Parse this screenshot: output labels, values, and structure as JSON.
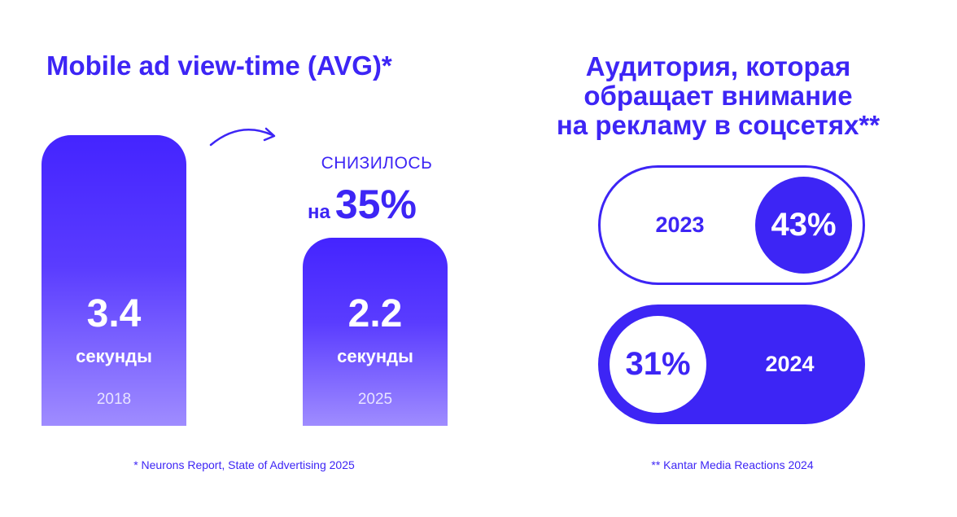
{
  "colors": {
    "accent": "#3d25f5",
    "bar_bottom": "#9f8cff",
    "background": "#ffffff"
  },
  "left_panel": {
    "title": "Mobile ad view-time (AVG)*",
    "change_label": "СНИЗИЛОСЬ",
    "change_prefix": "на",
    "change_value": "35%",
    "source": "* Neurons Report, State of Advertising 2025"
  },
  "right_panel": {
    "title_lines": [
      "Аудитория, которая",
      "обращает внимание",
      "на рекламу в соцсетях**"
    ],
    "pills": [
      {
        "year": "2023",
        "value": "43%"
      },
      {
        "year": "2024",
        "value": "31%"
      }
    ],
    "source": "** Kantar Media Reactions 2024"
  },
  "chart_data": [
    {
      "type": "bar",
      "title": "Mobile ad view-time (AVG)*",
      "categories": [
        "2018",
        "2025"
      ],
      "values": [
        3.4,
        2.2
      ],
      "value_labels": [
        "3.4",
        "2.2"
      ],
      "unit_label": "секунды",
      "annotation": "СНИЗИЛОСЬ на 35%"
    },
    {
      "type": "table",
      "title": "Аудитория, которая обращает внимание на рекламу в соцсетях**",
      "categories": [
        "2023",
        "2024"
      ],
      "values": [
        43,
        31
      ],
      "value_labels": [
        "43%",
        "31%"
      ]
    }
  ]
}
